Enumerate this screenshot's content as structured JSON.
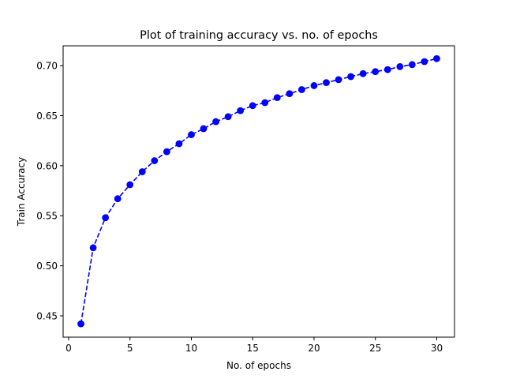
{
  "chart_data": {
    "type": "line",
    "title": "Plot of training accuracy vs. no. of epochs",
    "xlabel": "No. of epochs",
    "ylabel": "Train Accuracy",
    "xlim": [
      -0.45,
      31.45
    ],
    "ylim": [
      0.4287,
      0.7198
    ],
    "xticks": [
      0,
      5,
      10,
      15,
      20,
      25,
      30
    ],
    "yticks": [
      0.45,
      0.5,
      0.55,
      0.6,
      0.65,
      0.7
    ],
    "xtick_labels": [
      "0",
      "5",
      "10",
      "15",
      "20",
      "25",
      "30"
    ],
    "ytick_labels": [
      "0.45",
      "0.50",
      "0.55",
      "0.60",
      "0.65",
      "0.70"
    ],
    "grid": false,
    "series": [
      {
        "color": "#0000ff",
        "line_style": "dashed",
        "marker": "circle",
        "x": [
          1,
          2,
          3,
          4,
          5,
          6,
          7,
          8,
          9,
          10,
          11,
          12,
          13,
          14,
          15,
          16,
          17,
          18,
          19,
          20,
          21,
          22,
          23,
          24,
          25,
          26,
          27,
          28,
          29,
          30
        ],
        "y": [
          0.442,
          0.518,
          0.548,
          0.567,
          0.581,
          0.594,
          0.605,
          0.614,
          0.622,
          0.631,
          0.637,
          0.644,
          0.649,
          0.655,
          0.66,
          0.663,
          0.668,
          0.672,
          0.676,
          0.68,
          0.683,
          0.686,
          0.689,
          0.692,
          0.694,
          0.696,
          0.699,
          0.701,
          0.704,
          0.707
        ]
      }
    ]
  }
}
